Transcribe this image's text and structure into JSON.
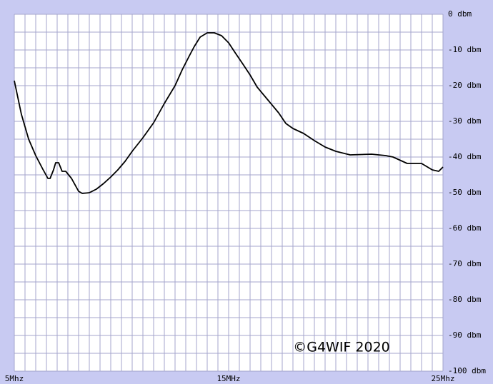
{
  "chart_data": {
    "type": "line",
    "annotation": "©G4WIF 2020",
    "x": [
      5,
      5.33,
      5.67,
      6,
      6.33,
      6.57,
      6.67,
      6.83,
      6.93,
      7.07,
      7.23,
      7.4,
      7.67,
      8,
      8.17,
      8.5,
      8.83,
      9.17,
      9.5,
      9.83,
      10.17,
      10.5,
      11,
      11.5,
      12,
      12.5,
      12.83,
      13.17,
      13.4,
      13.67,
      14,
      14.33,
      14.67,
      15,
      15.33,
      15.67,
      16,
      16.33,
      16.83,
      17.33,
      17.67,
      18,
      18.5,
      19,
      19.5,
      20,
      20.67,
      21.67,
      22.33,
      22.67,
      23.33,
      24,
      24.5,
      24.8,
      25
    ],
    "series": [
      {
        "color": "#000000",
        "values": [
          -18.6,
          -28,
          -35,
          -39.6,
          -43.4,
          -46,
          -46,
          -43.6,
          -41.6,
          -41.6,
          -44,
          -44,
          -46,
          -49.6,
          -50.2,
          -50,
          -49,
          -47.4,
          -45.6,
          -43.6,
          -41.2,
          -38.4,
          -34.6,
          -30.4,
          -25,
          -20,
          -15.6,
          -11.6,
          -9,
          -6.4,
          -5.2,
          -5.2,
          -6,
          -8,
          -11,
          -14,
          -17,
          -20.4,
          -24,
          -27.6,
          -30.6,
          -32,
          -33.4,
          -35.4,
          -37.2,
          -38.4,
          -39.4,
          -39.2,
          -39.6,
          -40,
          -41.8,
          -41.8,
          -43.6,
          -44,
          -42.8
        ]
      }
    ],
    "xlim": [
      5,
      25
    ],
    "xticks": [
      {
        "value": 5,
        "label": "5Mhz"
      },
      {
        "value": 15,
        "label": "15MHz"
      },
      {
        "value": 25,
        "label": "25Mhz"
      }
    ],
    "ylim": [
      -100,
      0
    ],
    "yticks": [
      {
        "value": 0,
        "label": "0 dbm"
      },
      {
        "value": -10,
        "label": "-10 dbm"
      },
      {
        "value": -20,
        "label": "-20 dbm"
      },
      {
        "value": -30,
        "label": "-30 dbm"
      },
      {
        "value": -40,
        "label": "-40 dbm"
      },
      {
        "value": -50,
        "label": "-50 dbm"
      },
      {
        "value": -60,
        "label": "-60 dbm"
      },
      {
        "value": -70,
        "label": "-70 dbm"
      },
      {
        "value": -80,
        "label": "-80 dbm"
      },
      {
        "value": -90,
        "label": "-90 dbm"
      },
      {
        "value": -100,
        "label": "-100 dbm"
      }
    ],
    "grid": true
  }
}
